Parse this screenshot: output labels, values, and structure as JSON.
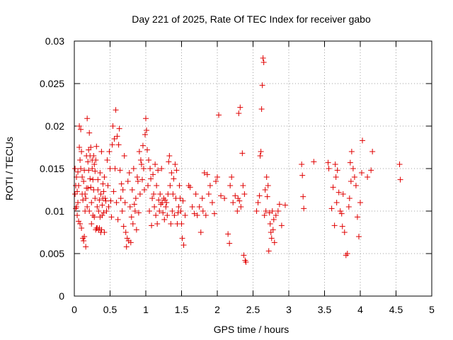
{
  "chart_data": {
    "type": "scatter",
    "title": "Day 221 of 2025, Rate Of TEC Index for receiver gabo",
    "xlabel": "GPS time / hours",
    "ylabel": "ROTI / TECUs",
    "xlim": [
      0,
      5
    ],
    "ylim": [
      0,
      0.03
    ],
    "x_ticks": [
      "0",
      "0.5",
      "1",
      "1.5",
      "2",
      "2.5",
      "3",
      "3.5",
      "4",
      "4.5",
      "5"
    ],
    "y_ticks": [
      "0",
      "0.005",
      "0.01",
      "0.015",
      "0.02",
      "0.025",
      "0.03"
    ],
    "grid": true,
    "marker": "+",
    "series_color": "#e00000",
    "series": [
      {
        "name": "ROTI",
        "points": [
          [
            0.01,
            0.012
          ],
          [
            0.01,
            0.015
          ],
          [
            0.02,
            0.0103
          ],
          [
            0.02,
            0.013
          ],
          [
            0.03,
            0.0105
          ],
          [
            0.03,
            0.014
          ],
          [
            0.04,
            0.0123
          ],
          [
            0.04,
            0.0095
          ],
          [
            0.05,
            0.011
          ],
          [
            0.05,
            0.0146
          ],
          [
            0.06,
            0.0088
          ],
          [
            0.06,
            0.013
          ],
          [
            0.07,
            0.02
          ],
          [
            0.07,
            0.0175
          ],
          [
            0.08,
            0.0085
          ],
          [
            0.08,
            0.016
          ],
          [
            0.09,
            0.0196
          ],
          [
            0.09,
            0.015
          ],
          [
            0.1,
            0.008
          ],
          [
            0.1,
            0.017
          ],
          [
            0.11,
            0.012
          ],
          [
            0.11,
            0.014
          ],
          [
            0.12,
            0.0068
          ],
          [
            0.12,
            0.0113
          ],
          [
            0.13,
            0.0065
          ],
          [
            0.13,
            0.0135
          ],
          [
            0.14,
            0.007
          ],
          [
            0.14,
            0.0148
          ],
          [
            0.15,
            0.01
          ],
          [
            0.15,
            0.012
          ],
          [
            0.16,
            0.0058
          ],
          [
            0.16,
            0.0115
          ],
          [
            0.17,
            0.0165
          ],
          [
            0.17,
            0.0127
          ],
          [
            0.18,
            0.0209
          ],
          [
            0.18,
            0.0105
          ],
          [
            0.19,
            0.0158
          ],
          [
            0.19,
            0.0127
          ],
          [
            0.2,
            0.0172
          ],
          [
            0.2,
            0.0148
          ],
          [
            0.21,
            0.0192
          ],
          [
            0.21,
            0.01
          ],
          [
            0.22,
            0.0165
          ],
          [
            0.22,
            0.0138
          ],
          [
            0.23,
            0.0128
          ],
          [
            0.23,
            0.0175
          ],
          [
            0.24,
            0.0085
          ],
          [
            0.24,
            0.011
          ],
          [
            0.25,
            0.015
          ],
          [
            0.25,
            0.016
          ],
          [
            0.26,
            0.0095
          ],
          [
            0.26,
            0.0137
          ],
          [
            0.27,
            0.0125
          ],
          [
            0.27,
            0.0165
          ],
          [
            0.28,
            0.0155
          ],
          [
            0.28,
            0.0093
          ],
          [
            0.29,
            0.0147
          ],
          [
            0.29,
            0.0115
          ],
          [
            0.3,
            0.0078
          ],
          [
            0.3,
            0.016
          ],
          [
            0.31,
            0.008
          ],
          [
            0.31,
            0.0176
          ],
          [
            0.32,
            0.008
          ],
          [
            0.32,
            0.0105
          ],
          [
            0.33,
            0.0137
          ],
          [
            0.33,
            0.0125
          ],
          [
            0.34,
            0.01
          ],
          [
            0.34,
            0.0078
          ],
          [
            0.35,
            0.008
          ],
          [
            0.35,
            0.0113
          ],
          [
            0.36,
            0.0093
          ],
          [
            0.36,
            0.0145
          ],
          [
            0.37,
            0.0075
          ],
          [
            0.37,
            0.012
          ],
          [
            0.38,
            0.0078
          ],
          [
            0.38,
            0.017
          ],
          [
            0.39,
            0.0095
          ],
          [
            0.39,
            0.0107
          ],
          [
            0.4,
            0.0132
          ],
          [
            0.4,
            0.0115
          ],
          [
            0.41,
            0.0098
          ],
          [
            0.41,
            0.0123
          ],
          [
            0.42,
            0.0075
          ],
          [
            0.42,
            0.014
          ],
          [
            0.43,
            0.0115
          ],
          [
            0.44,
            0.0112
          ],
          [
            0.45,
            0.01
          ],
          [
            0.46,
            0.016
          ],
          [
            0.47,
            0.013
          ],
          [
            0.48,
            0.0105
          ],
          [
            0.49,
            0.017
          ],
          [
            0.5,
            0.015
          ],
          [
            0.51,
            0.0112
          ],
          [
            0.52,
            0.0093
          ],
          [
            0.53,
            0.0178
          ],
          [
            0.54,
            0.02
          ],
          [
            0.55,
            0.0123
          ],
          [
            0.56,
            0.0185
          ],
          [
            0.57,
            0.015
          ],
          [
            0.58,
            0.0219
          ],
          [
            0.59,
            0.011
          ],
          [
            0.6,
            0.0188
          ],
          [
            0.61,
            0.009
          ],
          [
            0.62,
            0.0178
          ],
          [
            0.63,
            0.0197
          ],
          [
            0.64,
            0.0148
          ],
          [
            0.65,
            0.0115
          ],
          [
            0.66,
            0.0132
          ],
          [
            0.67,
            0.01
          ],
          [
            0.68,
            0.0125
          ],
          [
            0.69,
            0.0082
          ],
          [
            0.7,
            0.0165
          ],
          [
            0.71,
            0.011
          ],
          [
            0.72,
            0.0075
          ],
          [
            0.73,
            0.0058
          ],
          [
            0.74,
            0.0068
          ],
          [
            0.75,
            0.0135
          ],
          [
            0.76,
            0.0065
          ],
          [
            0.77,
            0.0145
          ],
          [
            0.78,
            0.0105
          ],
          [
            0.79,
            0.0063
          ],
          [
            0.8,
            0.0093
          ],
          [
            0.81,
            0.0125
          ],
          [
            0.82,
            0.0085
          ],
          [
            0.83,
            0.015
          ],
          [
            0.84,
            0.0108
          ],
          [
            0.85,
            0.01
          ],
          [
            0.86,
            0.0115
          ],
          [
            0.87,
            0.0078
          ],
          [
            0.88,
            0.014
          ],
          [
            0.89,
            0.0135
          ],
          [
            0.9,
            0.0098
          ],
          [
            0.91,
            0.017
          ],
          [
            0.92,
            0.012
          ],
          [
            0.93,
            0.016
          ],
          [
            0.94,
            0.0155
          ],
          [
            0.95,
            0.0137
          ],
          [
            0.96,
            0.0177
          ],
          [
            0.97,
            0.015
          ],
          [
            0.98,
            0.0125
          ],
          [
            0.99,
            0.019
          ],
          [
            1.0,
            0.0209
          ],
          [
            1.01,
            0.0195
          ],
          [
            1.02,
            0.0172
          ],
          [
            1.03,
            0.013
          ],
          [
            1.04,
            0.016
          ],
          [
            1.05,
            0.01
          ],
          [
            1.06,
            0.015
          ],
          [
            1.07,
            0.0138
          ],
          [
            1.08,
            0.0083
          ],
          [
            1.09,
            0.0115
          ],
          [
            1.1,
            0.0143
          ],
          [
            1.11,
            0.012
          ],
          [
            1.12,
            0.0105
          ],
          [
            1.13,
            0.0155
          ],
          [
            1.14,
            0.0095
          ],
          [
            1.15,
            0.013
          ],
          [
            1.16,
            0.0085
          ],
          [
            1.17,
            0.0148
          ],
          [
            1.18,
            0.0113
          ],
          [
            1.19,
            0.01
          ],
          [
            1.2,
            0.012
          ],
          [
            1.21,
            0.0108
          ],
          [
            1.22,
            0.015
          ],
          [
            1.23,
            0.011
          ],
          [
            1.24,
            0.0098
          ],
          [
            1.25,
            0.0115
          ],
          [
            1.26,
            0.009
          ],
          [
            1.27,
            0.0113
          ],
          [
            1.28,
            0.0105
          ],
          [
            1.29,
            0.011
          ],
          [
            1.3,
            0.0095
          ],
          [
            1.31,
            0.012
          ],
          [
            1.32,
            0.0158
          ],
          [
            1.33,
            0.0165
          ],
          [
            1.34,
            0.013
          ],
          [
            1.35,
            0.0085
          ],
          [
            1.36,
            0.0145
          ],
          [
            1.37,
            0.01
          ],
          [
            1.38,
            0.012
          ],
          [
            1.39,
            0.0138
          ],
          [
            1.4,
            0.0095
          ],
          [
            1.41,
            0.0155
          ],
          [
            1.42,
            0.0115
          ],
          [
            1.43,
            0.0148
          ],
          [
            1.44,
            0.0085
          ],
          [
            1.45,
            0.0098
          ],
          [
            1.46,
            0.0105
          ],
          [
            1.47,
            0.013
          ],
          [
            1.48,
            0.0115
          ],
          [
            1.49,
            0.01
          ],
          [
            1.5,
            0.0085
          ],
          [
            1.51,
            0.0068
          ],
          [
            1.52,
            0.0112
          ],
          [
            1.53,
            0.006
          ],
          [
            1.55,
            0.0095
          ],
          [
            1.6,
            0.013
          ],
          [
            1.62,
            0.0128
          ],
          [
            1.65,
            0.0105
          ],
          [
            1.68,
            0.0097
          ],
          [
            1.7,
            0.012
          ],
          [
            1.72,
            0.0095
          ],
          [
            1.75,
            0.0105
          ],
          [
            1.77,
            0.0075
          ],
          [
            1.79,
            0.0115
          ],
          [
            1.8,
            0.01
          ],
          [
            1.82,
            0.0145
          ],
          [
            1.84,
            0.0095
          ],
          [
            1.86,
            0.0143
          ],
          [
            1.88,
            0.012
          ],
          [
            1.9,
            0.013
          ],
          [
            1.93,
            0.011
          ],
          [
            1.96,
            0.0097
          ],
          [
            1.98,
            0.0135
          ],
          [
            2.0,
            0.014
          ],
          [
            2.02,
            0.0213
          ],
          [
            2.05,
            0.0118
          ],
          [
            2.1,
            0.0115
          ],
          [
            2.15,
            0.0073
          ],
          [
            2.17,
            0.0062
          ],
          [
            2.18,
            0.013
          ],
          [
            2.2,
            0.014
          ],
          [
            2.22,
            0.011
          ],
          [
            2.25,
            0.0118
          ],
          [
            2.28,
            0.01
          ],
          [
            2.29,
            0.0115
          ],
          [
            2.3,
            0.0215
          ],
          [
            2.31,
            0.0112
          ],
          [
            2.32,
            0.0222
          ],
          [
            2.33,
            0.0105
          ],
          [
            2.35,
            0.0168
          ],
          [
            2.36,
            0.013
          ],
          [
            2.37,
            0.0048
          ],
          [
            2.38,
            0.012
          ],
          [
            2.39,
            0.0042
          ],
          [
            2.4,
            0.004
          ],
          [
            2.55,
            0.01
          ],
          [
            2.57,
            0.011
          ],
          [
            2.59,
            0.0118
          ],
          [
            2.6,
            0.0165
          ],
          [
            2.61,
            0.017
          ],
          [
            2.62,
            0.022
          ],
          [
            2.63,
            0.0248
          ],
          [
            2.64,
            0.028
          ],
          [
            2.65,
            0.0275
          ],
          [
            2.66,
            0.0095
          ],
          [
            2.67,
            0.0125
          ],
          [
            2.68,
            0.01
          ],
          [
            2.69,
            0.014
          ],
          [
            2.7,
            0.0117
          ],
          [
            2.71,
            0.013
          ],
          [
            2.72,
            0.0053
          ],
          [
            2.73,
            0.0098
          ],
          [
            2.74,
            0.0085
          ],
          [
            2.75,
            0.0075
          ],
          [
            2.76,
            0.0068
          ],
          [
            2.77,
            0.01
          ],
          [
            2.78,
            0.0078
          ],
          [
            2.79,
            0.009
          ],
          [
            2.8,
            0.0063
          ],
          [
            2.82,
            0.0095
          ],
          [
            2.85,
            0.01
          ],
          [
            2.87,
            0.0108
          ],
          [
            2.9,
            0.0083
          ],
          [
            2.95,
            0.0107
          ],
          [
            3.18,
            0.0155
          ],
          [
            3.19,
            0.0142
          ],
          [
            3.2,
            0.0117
          ],
          [
            3.21,
            0.0103
          ],
          [
            3.35,
            0.0158
          ],
          [
            3.55,
            0.0157
          ],
          [
            3.56,
            0.015
          ],
          [
            3.6,
            0.0103
          ],
          [
            3.62,
            0.0128
          ],
          [
            3.64,
            0.0083
          ],
          [
            3.65,
            0.0155
          ],
          [
            3.66,
            0.014
          ],
          [
            3.67,
            0.011
          ],
          [
            3.68,
            0.0148
          ],
          [
            3.7,
            0.0122
          ],
          [
            3.72,
            0.01
          ],
          [
            3.74,
            0.0097
          ],
          [
            3.75,
            0.0082
          ],
          [
            3.76,
            0.012
          ],
          [
            3.78,
            0.0075
          ],
          [
            3.8,
            0.0048
          ],
          [
            3.82,
            0.005
          ],
          [
            3.84,
            0.0105
          ],
          [
            3.85,
            0.0115
          ],
          [
            3.86,
            0.0157
          ],
          [
            3.87,
            0.0135
          ],
          [
            3.88,
            0.017
          ],
          [
            3.9,
            0.015
          ],
          [
            3.92,
            0.014
          ],
          [
            3.94,
            0.013
          ],
          [
            3.96,
            0.0093
          ],
          [
            3.98,
            0.007
          ],
          [
            4.0,
            0.011
          ],
          [
            4.02,
            0.0145
          ],
          [
            4.03,
            0.0183
          ],
          [
            4.1,
            0.014
          ],
          [
            4.15,
            0.0148
          ],
          [
            4.17,
            0.017
          ],
          [
            4.55,
            0.0155
          ],
          [
            4.56,
            0.0137
          ]
        ]
      }
    ]
  }
}
